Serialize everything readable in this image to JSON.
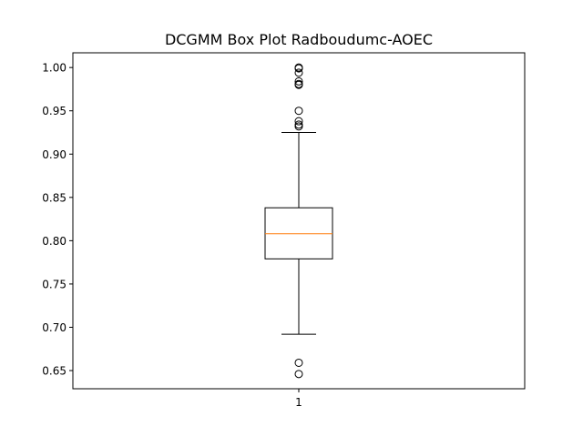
{
  "chart_data": {
    "type": "box",
    "title": "DCGMM Box Plot Radboudumc-AOEC",
    "xlabel": "",
    "ylabel": "",
    "categories": [
      "1"
    ],
    "ylim": [
      0.629,
      1.017
    ],
    "yticks": [
      0.65,
      0.7,
      0.75,
      0.8,
      0.85,
      0.9,
      0.95,
      1.0
    ],
    "ytick_labels": [
      "0.65",
      "0.70",
      "0.75",
      "0.80",
      "0.85",
      "0.90",
      "0.95",
      "1.00"
    ],
    "xticks": [
      "1"
    ],
    "grid": false,
    "box": {
      "whisker_low": 0.692,
      "q1": 0.779,
      "median": 0.808,
      "q3": 0.838,
      "whisker_high": 0.925
    },
    "outliers": [
      1.0,
      0.999,
      0.994,
      0.984,
      0.981,
      0.98,
      0.95,
      0.938,
      0.934,
      0.932,
      0.659,
      0.646
    ],
    "colors": {
      "box": "#000000",
      "median": "#ff7f0e",
      "outlier": "#000000"
    }
  }
}
